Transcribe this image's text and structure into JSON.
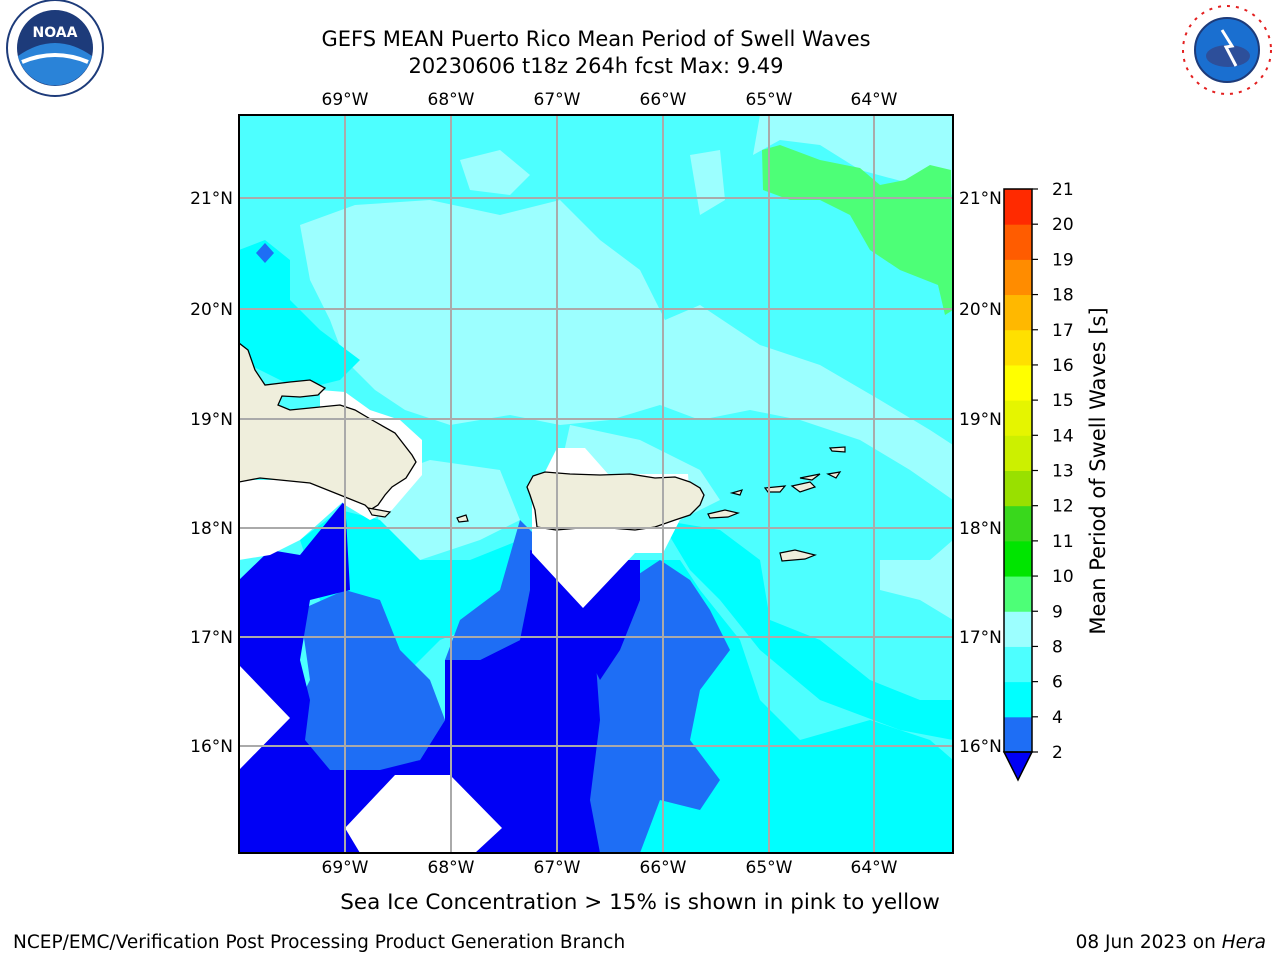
{
  "header": {
    "title_line1": "GEFS MEAN Puerto Rico Mean Period of Swell Waves",
    "title_line2": "20230606 t18z 264h fcst   Max: 9.49"
  },
  "map": {
    "lon_labels": [
      "69°W",
      "68°W",
      "67°W",
      "66°W",
      "65°W",
      "64°W"
    ],
    "lat_labels": [
      "21°N",
      "20°N",
      "19°N",
      "18°N",
      "17°N",
      "16°N"
    ],
    "colors": {
      "band_2_4": "#1e6ef5",
      "band_4_6": "#00ffff",
      "band_6_8": "#4dffff",
      "band_8_9": "#9cffff",
      "band_9_10": "#4dff77",
      "under_range": "#0000f5",
      "land": "#efeedc",
      "grid": "#aaaaaa"
    }
  },
  "colorbar": {
    "label": "Mean Period of Swell Waves [s]",
    "ticks": [
      "2",
      "4",
      "6",
      "8",
      "9",
      "10",
      "11",
      "12",
      "13",
      "14",
      "15",
      "16",
      "17",
      "18",
      "19",
      "20",
      "21"
    ],
    "colors": [
      "#1e6ef5",
      "#00ffff",
      "#4dffff",
      "#9cffff",
      "#4dff77",
      "#00e500",
      "#39d81c",
      "#99e000",
      "#ccf000",
      "#e5f500",
      "#ffff00",
      "#ffe000",
      "#ffb800",
      "#ff8c00",
      "#ff5c00",
      "#ff2a00"
    ]
  },
  "subtitle": "Sea Ice Concentration > 15% is shown in pink to yellow",
  "footer": {
    "left": "NCEP/EMC/Verification Post Processing Product Generation Branch",
    "date": "08 Jun 2023 on ",
    "host": "Hera"
  },
  "logos": {
    "noaa_text": "NOAA",
    "noaa_ring": "NATIONAL OCEANIC AND ATMOSPHERIC ADMINISTRATION • U.S. DEPARTMENT OF COMMERCE",
    "nws_ring": "NATIONAL WEATHER SERVICE"
  }
}
